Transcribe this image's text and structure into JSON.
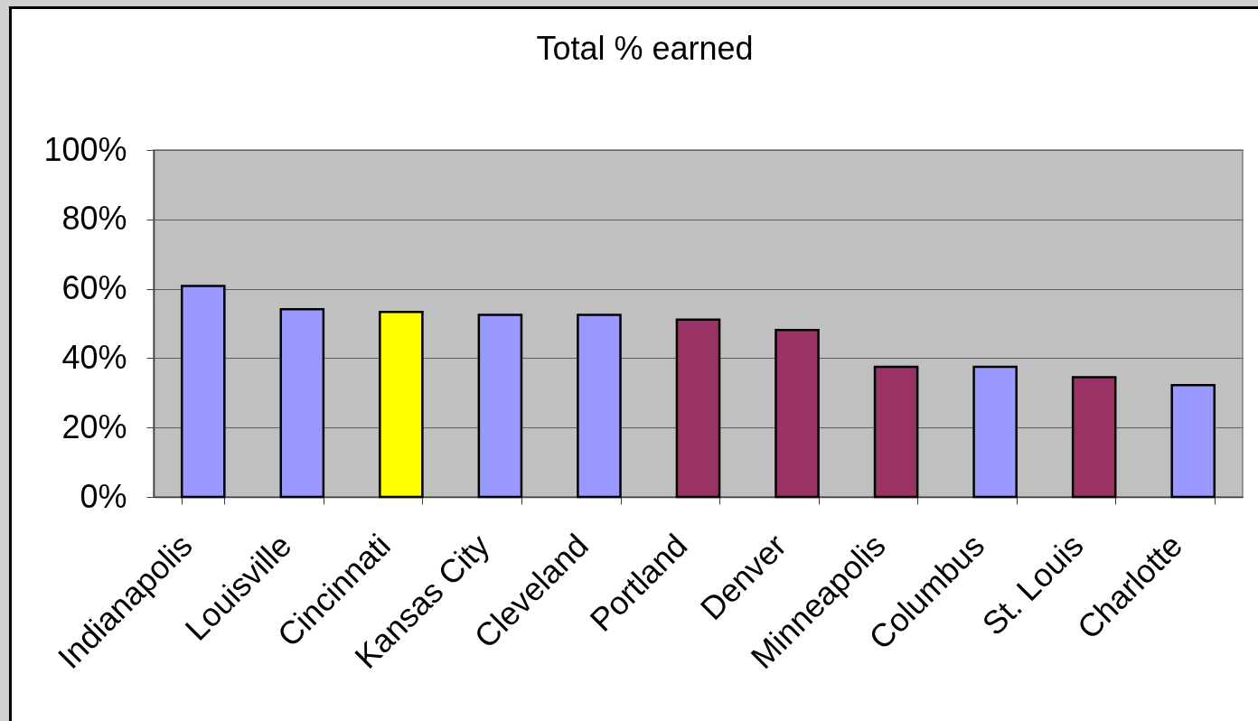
{
  "chart_data": {
    "type": "bar",
    "title": "Total % earned",
    "categories": [
      "Indianapolis",
      "Louisville",
      "Cincinnati",
      "Kansas City",
      "Cleveland",
      "Portland",
      "Denver",
      "Minneapolis",
      "Columbus",
      "St. Louis",
      "Charlotte"
    ],
    "values": [
      60.8,
      54.1,
      53.3,
      52.5,
      52.5,
      51.1,
      48.1,
      37.5,
      37.5,
      34.5,
      32.2
    ],
    "colors": [
      "#9999ff",
      "#9999ff",
      "#ffff00",
      "#9999ff",
      "#9999ff",
      "#993366",
      "#993366",
      "#993366",
      "#9999ff",
      "#993366",
      "#9999ff"
    ],
    "ylim": [
      0,
      100
    ],
    "yticks": [
      {
        "value": 0,
        "label": "0%"
      },
      {
        "value": 20,
        "label": "20%"
      },
      {
        "value": 40,
        "label": "40%"
      },
      {
        "value": 60,
        "label": "60%"
      },
      {
        "value": 80,
        "label": "80%"
      },
      {
        "value": 100,
        "label": "100%"
      }
    ],
    "grid": "y"
  }
}
